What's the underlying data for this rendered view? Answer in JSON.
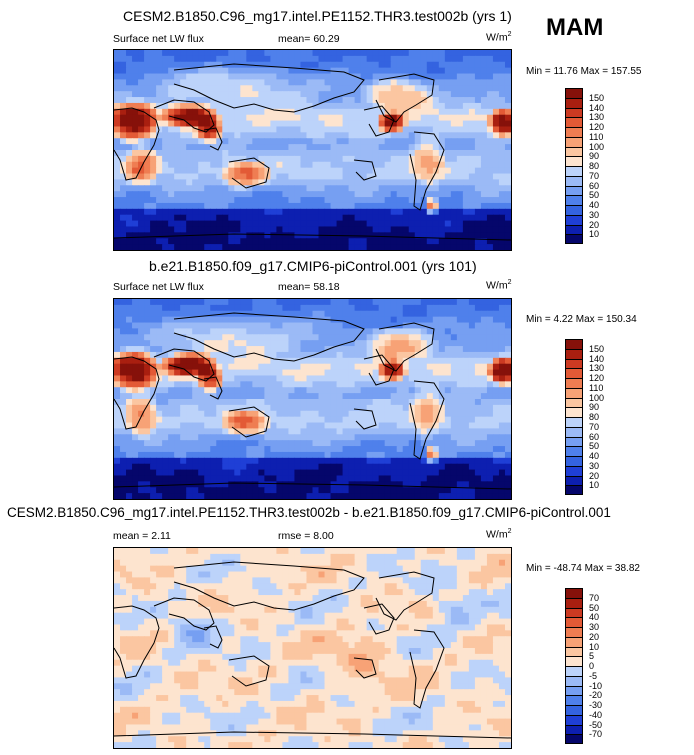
{
  "season": "MAM",
  "colors": {
    "abs_scale": [
      "#05066b",
      "#0d1fb0",
      "#1f3fd6",
      "#3463e0",
      "#4f80eb",
      "#769ff2",
      "#9bbaf6",
      "#bcd3fa",
      "#dce8fd",
      "#fde4cf",
      "#fbc6a1",
      "#f7a276",
      "#ef7d52",
      "#e35a36",
      "#cc3a22",
      "#a91f10",
      "#86110a"
    ],
    "diff_scale": [
      "#05066b",
      "#0d1fb0",
      "#1f3fd6",
      "#3463e0",
      "#4f80eb",
      "#769ff2",
      "#9bbaf6",
      "#bcd3fa",
      "#dce8fd",
      "#fde4cf",
      "#fbc6a1",
      "#f7a276",
      "#ef7d52",
      "#e35a36",
      "#cc3a22",
      "#a91f10",
      "#86110a"
    ]
  },
  "panels": [
    {
      "title": "CESM2.B1850.C96_mg17.intel.PE1152.THR3.test002b (yrs 1)",
      "left_label": "Surface net LW flux",
      "center_label": "mean=  60.29",
      "units": "W/m",
      "units_sup": "2",
      "minmax": "Min =  11.76 Max = 157.55",
      "cbar_labels": [
        "150",
        "140",
        "130",
        "120",
        "110",
        "100",
        "90",
        "80",
        "70",
        "60",
        "50",
        "40",
        "30",
        "20",
        "10"
      ]
    },
    {
      "title": "b.e21.B1850.f09_g17.CMIP6-piControl.001 (yrs 101)",
      "left_label": "Surface net LW flux",
      "center_label": "mean=  58.18",
      "units": "W/m",
      "units_sup": "2",
      "minmax": "Min =   4.22 Max = 150.34",
      "cbar_labels": [
        "150",
        "140",
        "130",
        "120",
        "110",
        "100",
        "90",
        "80",
        "70",
        "60",
        "50",
        "40",
        "30",
        "20",
        "10"
      ]
    },
    {
      "title": "CESM2.B1850.C96_mg17.intel.PE1152.THR3.test002b - b.e21.B1850.f09_g17.CMIP6-piControl.001",
      "left_label": "mean =   2.11",
      "center_label": "rmse =   8.00",
      "units": "W/m",
      "units_sup": "2",
      "minmax": "Min = -48.74 Max =  38.82",
      "cbar_labels": [
        "70",
        "50",
        "40",
        "30",
        "20",
        "10",
        "5",
        "0",
        "-5",
        "-10",
        "-20",
        "-30",
        "-40",
        "-50",
        "-70"
      ]
    }
  ],
  "chart_data": [
    {
      "type": "heatmap",
      "title": "CESM2.B1850.C96_mg17.intel.PE1152.THR3.test002b (yrs 1)",
      "variable": "Surface net LW flux",
      "units": "W/m2",
      "mean": 60.29,
      "min": 11.76,
      "max": 157.55,
      "contour_levels": [
        10,
        20,
        30,
        40,
        50,
        60,
        70,
        80,
        90,
        100,
        110,
        120,
        130,
        140,
        150
      ],
      "season": "MAM"
    },
    {
      "type": "heatmap",
      "title": "b.e21.B1850.f09_g17.CMIP6-piControl.001 (yrs 101)",
      "variable": "Surface net LW flux",
      "units": "W/m2",
      "mean": 58.18,
      "min": 4.22,
      "max": 150.34,
      "contour_levels": [
        10,
        20,
        30,
        40,
        50,
        60,
        70,
        80,
        90,
        100,
        110,
        120,
        130,
        140,
        150
      ]
    },
    {
      "type": "heatmap",
      "title": "CESM2.B1850.C96_mg17.intel.PE1152.THR3.test002b - b.e21.B1850.f09_g17.CMIP6-piControl.001",
      "units": "W/m2",
      "mean": 2.11,
      "rmse": 8.0,
      "min": -48.74,
      "max": 38.82,
      "contour_levels": [
        -70,
        -50,
        -40,
        -30,
        -20,
        -10,
        -5,
        0,
        5,
        10,
        20,
        30,
        40,
        50,
        70
      ]
    }
  ]
}
